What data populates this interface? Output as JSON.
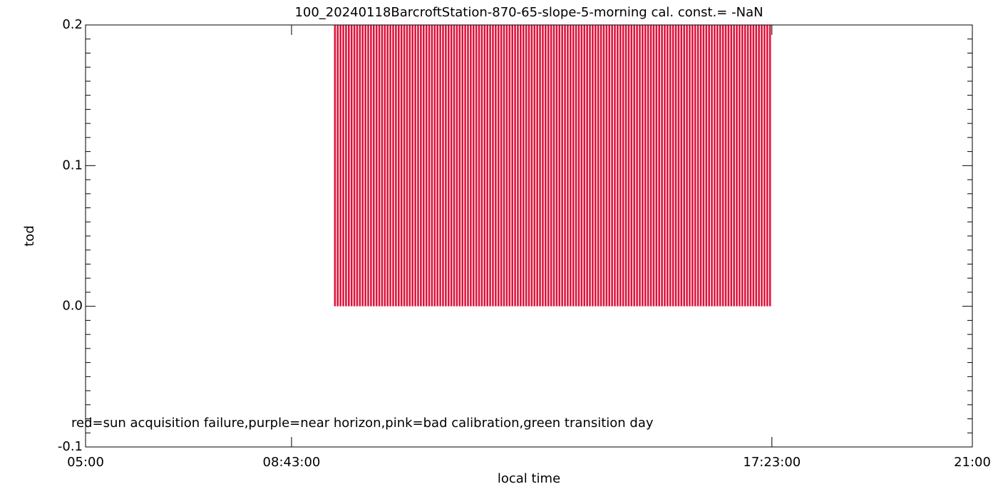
{
  "chart_data": {
    "type": "bar",
    "title": "100_20240118BarcroftStation-870-65-slope-5-morning cal. const.= -NaN",
    "x_label": "local time",
    "y_label": "tod",
    "annotation": "red=sun acquisition failure,purple=near horizon,pink=bad calibration,green transition day",
    "color": "#dc143c",
    "xlim": [
      5,
      21
    ],
    "xticks": [
      {
        "value": 5,
        "label": "05:00"
      },
      {
        "value": 8.7167,
        "label": "08:43:00"
      },
      {
        "value": 17.3833,
        "label": "17:23:00"
      },
      {
        "value": 21,
        "label": "21:00"
      }
    ],
    "ylim": [
      -0.1,
      0.2
    ],
    "yticks": [
      -0.1,
      {
        "value": 0,
        "label": "0.0"
      },
      0.1,
      0.2
    ],
    "y_minor_divisions": 10,
    "x": [
      9.5,
      9.55,
      9.6,
      9.65,
      9.7,
      9.75,
      9.8,
      9.85,
      9.9,
      9.95,
      10,
      10.05,
      10.1,
      10.15,
      10.2,
      10.25,
      10.3,
      10.35,
      10.4,
      10.45,
      10.5,
      10.55,
      10.6,
      10.65,
      10.7,
      10.75,
      10.8,
      10.85,
      10.9,
      10.95,
      11,
      11.05,
      11.1,
      11.15,
      11.2,
      11.25,
      11.3,
      11.35,
      11.4,
      11.45,
      11.5,
      11.55,
      11.6,
      11.65,
      11.7,
      11.75,
      11.8,
      11.85,
      11.9,
      11.95,
      12,
      12.05,
      12.1,
      12.15,
      12.2,
      12.25,
      12.3,
      12.35,
      12.4,
      12.45,
      12.5,
      12.55,
      12.6,
      12.65,
      12.7,
      12.75,
      12.8,
      12.85,
      12.9,
      12.95,
      13,
      13.05,
      13.1,
      13.15,
      13.2,
      13.25,
      13.3,
      13.35,
      13.4,
      13.45,
      13.5,
      13.55,
      13.6,
      13.65,
      13.7,
      13.75,
      13.8,
      13.85,
      13.9,
      13.95,
      14,
      14.05,
      14.1,
      14.15,
      14.2,
      14.25,
      14.3,
      14.35,
      14.4,
      14.45,
      14.5,
      14.55,
      14.6,
      14.65,
      14.7,
      14.75,
      14.8,
      14.85,
      14.9,
      14.95,
      15,
      15.05,
      15.1,
      15.15,
      15.2,
      15.25,
      15.3,
      15.35,
      15.4,
      15.45,
      15.5,
      15.55,
      15.6,
      15.65,
      15.7,
      15.75,
      15.8,
      15.85,
      15.9,
      15.95,
      16,
      16.05,
      16.1,
      16.15,
      16.2,
      16.25,
      16.3,
      16.35,
      16.4,
      16.45,
      16.5,
      16.55,
      16.6,
      16.65,
      16.7,
      16.75,
      16.8,
      16.85,
      16.9,
      16.95,
      17,
      17.05,
      17.1,
      17.15,
      17.2,
      17.25,
      17.3,
      17.35
    ],
    "values": [
      0.2,
      0.2,
      0.2,
      0.2,
      0.2,
      0.2,
      0.2,
      0.2,
      0.2,
      0.2,
      0.2,
      0.2,
      0.2,
      0.2,
      0.2,
      0.2,
      0.2,
      0.2,
      0.2,
      0.2,
      0.2,
      0.2,
      0.2,
      0.2,
      0.2,
      0.2,
      0.2,
      0.2,
      0.2,
      0.2,
      0.2,
      0.2,
      0.2,
      0.2,
      0.2,
      0.2,
      0.2,
      0.2,
      0.2,
      0.2,
      0.2,
      0.2,
      0.2,
      0.2,
      0.2,
      0.2,
      0.2,
      0.2,
      0.2,
      0.2,
      0.2,
      0.2,
      0.2,
      0.2,
      0.2,
      0.2,
      0.2,
      0.2,
      0.2,
      0.2,
      0.2,
      0.2,
      0.2,
      0.2,
      0.2,
      0.2,
      0.2,
      0.2,
      0.2,
      0.2,
      0.2,
      0.2,
      0.2,
      0.2,
      0.2,
      0.2,
      0.2,
      0.2,
      0.2,
      0.2,
      0.2,
      0.2,
      0.2,
      0.2,
      0.2,
      0.2,
      0.2,
      0.2,
      0.2,
      0.2,
      0.2,
      0.2,
      0.2,
      0.2,
      0.2,
      0.2,
      0.2,
      0.2,
      0.2,
      0.2,
      0.2,
      0.2,
      0.2,
      0.2,
      0.2,
      0.2,
      0.2,
      0.2,
      0.2,
      0.2,
      0.2,
      0.2,
      0.2,
      0.2,
      0.2,
      0.2,
      0.2,
      0.2,
      0.2,
      0.2,
      0.2,
      0.2,
      0.2,
      0.2,
      0.2,
      0.2,
      0.2,
      0.2,
      0.2,
      0.2,
      0.2,
      0.2,
      0.2,
      0.2,
      0.2,
      0.2,
      0.2,
      0.2,
      0.2,
      0.2,
      0.2,
      0.2,
      0.2,
      0.2,
      0.2,
      0.2,
      0.2,
      0.2,
      0.2,
      0.2,
      0.2,
      0.2,
      0.2,
      0.2,
      0.2,
      0.2,
      0.2,
      0.2
    ]
  }
}
